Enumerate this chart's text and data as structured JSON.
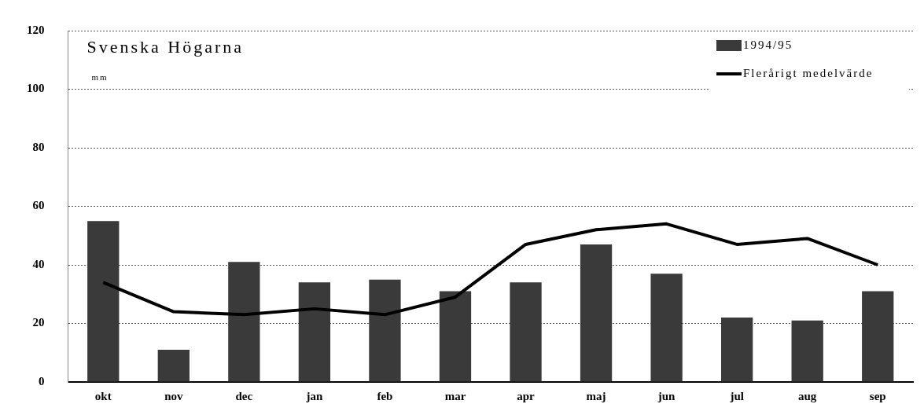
{
  "chart_data": {
    "type": "bar",
    "title": "Svenska Högarna",
    "ylabel": "mm",
    "categories": [
      "okt",
      "nov",
      "dec",
      "jan",
      "feb",
      "mar",
      "apr",
      "maj",
      "jun",
      "jul",
      "aug",
      "sep"
    ],
    "series": [
      {
        "name": "1994/95",
        "color": "#3a3a3a",
        "values": [
          55,
          11,
          41,
          34,
          35,
          31,
          34,
          47,
          37,
          22,
          21,
          31
        ]
      },
      {
        "name": "Flerårigt medelvärde",
        "type": "line",
        "color": "#000000",
        "values": [
          34,
          24,
          23,
          25,
          23,
          29,
          47,
          52,
          54,
          47,
          49,
          40
        ]
      }
    ],
    "ylim": [
      0,
      120
    ],
    "yticks": [
      0,
      20,
      40,
      60,
      80,
      100,
      120
    ],
    "grid": "y",
    "legend": "top right",
    "marker": "none",
    "line_style": "solid"
  }
}
